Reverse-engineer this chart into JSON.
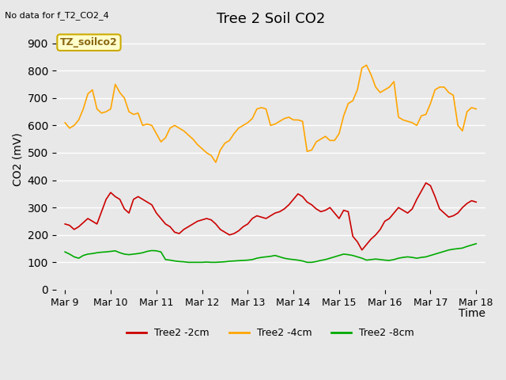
{
  "title": "Tree 2 Soil CO2",
  "subtitle": "No data for f_T2_CO2_4",
  "ylabel": "CO2 (mV)",
  "xlabel": "Time",
  "legend_label": "TZ_soilco2",
  "bg_color": "#e8e8e8",
  "plot_bg_color": "#e8e8e8",
  "grid_color": "white",
  "ylim": [
    0,
    950
  ],
  "yticks": [
    0,
    100,
    200,
    300,
    400,
    500,
    600,
    700,
    800,
    900
  ],
  "series": {
    "red": {
      "label": "Tree2 -2cm",
      "color": "#cc0000",
      "x": [
        0,
        0.1,
        0.2,
        0.3,
        0.4,
        0.5,
        0.6,
        0.7,
        0.8,
        0.9,
        1.0,
        1.1,
        1.2,
        1.3,
        1.4,
        1.5,
        1.6,
        1.7,
        1.8,
        1.9,
        2.0,
        2.1,
        2.2,
        2.3,
        2.4,
        2.5,
        2.6,
        2.7,
        2.8,
        2.9,
        3.0,
        3.1,
        3.2,
        3.3,
        3.4,
        3.5,
        3.6,
        3.7,
        3.8,
        3.9,
        4.0,
        4.1,
        4.2,
        4.3,
        4.4,
        4.5,
        4.6,
        4.7,
        4.8,
        4.9,
        5.0,
        5.1,
        5.2,
        5.3,
        5.4,
        5.5,
        5.6,
        5.7,
        5.8,
        5.9,
        6.0,
        6.1,
        6.2,
        6.3,
        6.4,
        6.5,
        6.6,
        6.7,
        6.8,
        6.9,
        7.0,
        7.1,
        7.2,
        7.3,
        7.4,
        7.5,
        7.6,
        7.7,
        7.8,
        7.9,
        8.0,
        8.1,
        8.2,
        8.3,
        8.4,
        8.5,
        8.6,
        8.7,
        8.8,
        8.9,
        9.0
      ],
      "y": [
        240,
        235,
        220,
        230,
        245,
        260,
        250,
        240,
        285,
        330,
        355,
        340,
        330,
        295,
        280,
        330,
        340,
        330,
        320,
        310,
        280,
        260,
        240,
        230,
        210,
        205,
        220,
        230,
        240,
        250,
        255,
        260,
        255,
        240,
        220,
        210,
        200,
        205,
        215,
        230,
        240,
        260,
        270,
        265,
        260,
        270,
        280,
        285,
        295,
        310,
        330,
        350,
        340,
        320,
        310,
        295,
        285,
        290,
        300,
        280,
        260,
        290,
        285,
        195,
        175,
        145,
        165,
        185,
        200,
        220,
        250,
        260,
        280,
        300,
        290,
        280,
        295,
        330,
        360,
        390,
        380,
        340,
        295,
        280,
        265,
        270,
        280,
        300,
        315,
        325,
        320
      ]
    },
    "orange": {
      "label": "Tree2 -4cm",
      "color": "#ffa500",
      "x": [
        0,
        0.1,
        0.2,
        0.3,
        0.4,
        0.5,
        0.6,
        0.7,
        0.8,
        0.9,
        1.0,
        1.1,
        1.2,
        1.3,
        1.4,
        1.5,
        1.6,
        1.7,
        1.8,
        1.9,
        2.0,
        2.1,
        2.2,
        2.3,
        2.4,
        2.5,
        2.6,
        2.7,
        2.8,
        2.9,
        3.0,
        3.1,
        3.2,
        3.3,
        3.4,
        3.5,
        3.6,
        3.7,
        3.8,
        3.9,
        4.0,
        4.1,
        4.2,
        4.3,
        4.4,
        4.5,
        4.6,
        4.7,
        4.8,
        4.9,
        5.0,
        5.1,
        5.2,
        5.3,
        5.4,
        5.5,
        5.6,
        5.7,
        5.8,
        5.9,
        6.0,
        6.1,
        6.2,
        6.3,
        6.4,
        6.5,
        6.6,
        6.7,
        6.8,
        6.9,
        7.0,
        7.1,
        7.2,
        7.3,
        7.4,
        7.5,
        7.6,
        7.7,
        7.8,
        7.9,
        8.0,
        8.1,
        8.2,
        8.3,
        8.4,
        8.5,
        8.6,
        8.7,
        8.8,
        8.9,
        9.0
      ],
      "y": [
        610,
        590,
        600,
        620,
        660,
        715,
        730,
        660,
        645,
        650,
        660,
        750,
        720,
        700,
        650,
        640,
        645,
        600,
        605,
        600,
        570,
        540,
        555,
        590,
        600,
        590,
        580,
        565,
        550,
        530,
        515,
        500,
        490,
        465,
        510,
        535,
        545,
        570,
        590,
        600,
        610,
        625,
        660,
        665,
        660,
        600,
        605,
        615,
        625,
        630,
        620,
        620,
        615,
        505,
        510,
        540,
        550,
        560,
        545,
        545,
        570,
        635,
        680,
        690,
        730,
        810,
        820,
        785,
        740,
        720,
        730,
        740,
        760,
        630,
        620,
        615,
        610,
        600,
        635,
        640,
        680,
        730,
        740,
        740,
        720,
        710,
        600,
        580,
        650,
        665,
        660
      ]
    },
    "green": {
      "label": "Tree2 -8cm",
      "color": "#00aa00",
      "x": [
        0,
        0.1,
        0.2,
        0.3,
        0.4,
        0.5,
        0.6,
        0.7,
        0.8,
        0.9,
        1.0,
        1.1,
        1.2,
        1.3,
        1.4,
        1.5,
        1.6,
        1.7,
        1.8,
        1.9,
        2.0,
        2.1,
        2.2,
        2.3,
        2.4,
        2.5,
        2.6,
        2.7,
        2.8,
        2.9,
        3.0,
        3.1,
        3.2,
        3.3,
        3.4,
        3.5,
        3.6,
        3.7,
        3.8,
        3.9,
        4.0,
        4.1,
        4.2,
        4.3,
        4.4,
        4.5,
        4.6,
        4.7,
        4.8,
        4.9,
        5.0,
        5.1,
        5.2,
        5.3,
        5.4,
        5.5,
        5.6,
        5.7,
        5.8,
        5.9,
        6.0,
        6.1,
        6.2,
        6.3,
        6.4,
        6.5,
        6.6,
        6.7,
        6.8,
        6.9,
        7.0,
        7.1,
        7.2,
        7.3,
        7.4,
        7.5,
        7.6,
        7.7,
        7.8,
        7.9,
        8.0,
        8.1,
        8.2,
        8.3,
        8.4,
        8.5,
        8.6,
        8.7,
        8.8,
        8.9,
        9.0
      ],
      "y": [
        138,
        130,
        120,
        115,
        125,
        130,
        132,
        135,
        137,
        138,
        140,
        142,
        135,
        130,
        128,
        130,
        132,
        135,
        140,
        143,
        142,
        138,
        110,
        108,
        105,
        103,
        102,
        100,
        100,
        100,
        100,
        101,
        100,
        100,
        101,
        102,
        104,
        105,
        106,
        107,
        108,
        110,
        115,
        118,
        120,
        122,
        125,
        120,
        115,
        112,
        110,
        108,
        105,
        100,
        100,
        103,
        107,
        110,
        115,
        120,
        125,
        130,
        128,
        125,
        120,
        115,
        108,
        110,
        112,
        110,
        108,
        107,
        110,
        115,
        118,
        120,
        118,
        115,
        118,
        120,
        125,
        130,
        135,
        140,
        145,
        148,
        150,
        152,
        158,
        163,
        168
      ]
    }
  },
  "xtick_positions": [
    0,
    1,
    2,
    3,
    4,
    5,
    6,
    7,
    8,
    9
  ],
  "xtick_labels": [
    "Mar 9",
    "Mar 10",
    "Mar 11",
    "Mar 12",
    "Mar 13",
    "Mar 14",
    "Mar 15",
    "Mar 16",
    "Mar 17",
    "Mar 18"
  ]
}
